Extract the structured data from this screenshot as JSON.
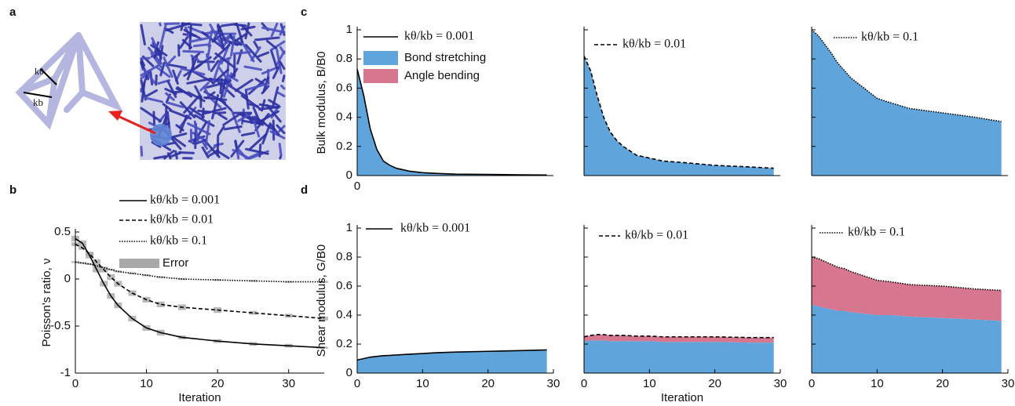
{
  "panels": [
    "a",
    "b",
    "c",
    "d"
  ],
  "diagram_labels": [
    "kθ",
    "kb"
  ],
  "chart_data": [
    {
      "type": "line",
      "xlabel": "Iteration",
      "ylabel": "Poisson's ratio, ν",
      "x": [
        0,
        1,
        2,
        3,
        4,
        5,
        6,
        8,
        10,
        12,
        15,
        20,
        25,
        30,
        35
      ],
      "xlim": [
        0,
        35
      ],
      "xticks": [
        0,
        10,
        20,
        30
      ],
      "ylim": [
        -1,
        0.5
      ],
      "yticks": [
        -1,
        -0.5,
        0,
        0.5
      ],
      "series": [
        {
          "name": "kθ/kb = 0.001",
          "color": "#000000",
          "dash": "solid",
          "values": [
            0.43,
            0.38,
            0.25,
            0.1,
            -0.05,
            -0.18,
            -0.28,
            -0.42,
            -0.52,
            -0.57,
            -0.62,
            -0.66,
            -0.69,
            -0.71,
            -0.73
          ],
          "error": [
            0.03,
            0.03,
            0.03,
            0.03,
            0.03,
            0.03,
            0.03,
            0.03,
            0.03,
            0.03,
            0.02,
            0.02,
            0.02,
            0.02,
            0.01
          ]
        },
        {
          "name": "kθ/kb = 0.01",
          "color": "#000000",
          "dash": "dashed",
          "values": [
            0.37,
            0.33,
            0.27,
            0.18,
            0.1,
            0.02,
            -0.05,
            -0.15,
            -0.22,
            -0.27,
            -0.3,
            -0.33,
            -0.36,
            -0.39,
            -0.42
          ],
          "error": [
            0.02,
            0.02,
            0.02,
            0.03,
            0.03,
            0.03,
            0.03,
            0.03,
            0.03,
            0.03,
            0.03,
            0.03,
            0.02,
            0.02,
            0.02
          ]
        },
        {
          "name": "kθ/kb = 0.1",
          "color": "#000000",
          "dash": "dotted",
          "values": [
            0.18,
            0.17,
            0.16,
            0.14,
            0.12,
            0.1,
            0.08,
            0.06,
            0.04,
            0.02,
            0.0,
            -0.01,
            -0.02,
            -0.03,
            -0.03
          ],
          "error": [
            0.01,
            0.01,
            0.01,
            0.01,
            0.01,
            0.01,
            0.01,
            0.01,
            0.01,
            0.01,
            0.01,
            0.01,
            0.01,
            0.01,
            0.01
          ]
        }
      ],
      "error_name": "Error",
      "error_color": "#a8a8a8",
      "legend": "upper right"
    },
    {
      "type": "stacked-area",
      "ylabel": "Bulk modulus, B/B0",
      "x": [
        0,
        1,
        2,
        3,
        4,
        5,
        6,
        8,
        10,
        12,
        15,
        20,
        25,
        29
      ],
      "xlim": [
        0,
        30
      ],
      "xticks": [
        0
      ],
      "ylim": [
        0,
        1
      ],
      "yticks": [
        0,
        0.2,
        0.4,
        0.6,
        0.8,
        1
      ],
      "show_ytick_labels": true,
      "total_line": {
        "name": "kθ/kb = 0.001",
        "dash": "solid",
        "color": "#000000"
      },
      "series": [
        {
          "name": "Bond stretching",
          "color": "#5fa5dc",
          "values": [
            0.73,
            0.55,
            0.32,
            0.18,
            0.1,
            0.07,
            0.05,
            0.03,
            0.02,
            0.015,
            0.01,
            0.008,
            0.005,
            0.004
          ]
        },
        {
          "name": "Angle bending",
          "color": "#d6778f",
          "values": [
            0,
            0,
            0,
            0,
            0,
            0,
            0,
            0,
            0,
            0,
            0,
            0,
            0,
            0
          ]
        }
      ]
    },
    {
      "type": "stacked-area",
      "x": [
        0,
        1,
        2,
        3,
        4,
        5,
        6,
        8,
        10,
        12,
        15,
        20,
        25,
        29
      ],
      "xlim": [
        0,
        30
      ],
      "ylim": [
        0,
        1
      ],
      "yticks": [
        0,
        0.2,
        0.4,
        0.6,
        0.8,
        1
      ],
      "show_ytick_labels": false,
      "total_line": {
        "name": "kθ/kb = 0.01",
        "dash": "dashed",
        "color": "#000000"
      },
      "series": [
        {
          "color": "#5fa5dc",
          "values": [
            0.82,
            0.72,
            0.55,
            0.4,
            0.3,
            0.24,
            0.2,
            0.14,
            0.12,
            0.1,
            0.09,
            0.07,
            0.06,
            0.05
          ]
        },
        {
          "color": "#d6778f",
          "values": [
            0,
            0,
            0,
            0,
            0,
            0,
            0,
            0,
            0,
            0,
            0,
            0,
            0,
            0
          ]
        }
      ]
    },
    {
      "type": "stacked-area",
      "x": [
        0,
        1,
        2,
        3,
        4,
        5,
        6,
        8,
        10,
        12,
        15,
        20,
        25,
        29
      ],
      "xlim": [
        0,
        30
      ],
      "ylim": [
        0,
        1
      ],
      "yticks": [
        0,
        0.2,
        0.4,
        0.6,
        0.8,
        1
      ],
      "show_ytick_labels": false,
      "total_line": {
        "name": "kθ/kb = 0.1",
        "dash": "dotted",
        "color": "#000000"
      },
      "series": [
        {
          "color": "#5fa5dc",
          "values": [
            1.0,
            0.96,
            0.9,
            0.84,
            0.77,
            0.72,
            0.67,
            0.6,
            0.53,
            0.5,
            0.46,
            0.43,
            0.4,
            0.37
          ]
        },
        {
          "color": "#d6778f",
          "values": [
            0,
            0,
            0,
            0,
            0,
            0,
            0,
            0,
            0,
            0,
            0,
            0,
            0,
            0
          ]
        }
      ]
    },
    {
      "type": "stacked-area",
      "ylabel": "Shear modulus, G/B0",
      "x": [
        0,
        1,
        2,
        3,
        4,
        5,
        6,
        8,
        10,
        12,
        15,
        20,
        25,
        29
      ],
      "xlim": [
        0,
        30
      ],
      "xticks": [
        0,
        10,
        20,
        30
      ],
      "ylim": [
        0,
        1
      ],
      "yticks": [
        0,
        0.2,
        0.4,
        0.6,
        0.8,
        1
      ],
      "show_ytick_labels": true,
      "total_line": {
        "name": "kθ/kb = 0.001",
        "dash": "solid",
        "color": "#000000"
      },
      "series": [
        {
          "color": "#5fa5dc",
          "values": [
            0.09,
            0.1,
            0.11,
            0.115,
            0.12,
            0.122,
            0.125,
            0.13,
            0.135,
            0.14,
            0.145,
            0.15,
            0.155,
            0.16
          ]
        },
        {
          "color": "#d6778f",
          "values": [
            0,
            0,
            0,
            0,
            0,
            0,
            0,
            0,
            0,
            0,
            0,
            0,
            0,
            0
          ]
        }
      ]
    },
    {
      "type": "stacked-area",
      "xlabel": "Iteration",
      "x": [
        0,
        1,
        2,
        3,
        4,
        5,
        6,
        8,
        10,
        12,
        15,
        20,
        25,
        29
      ],
      "xlim": [
        0,
        30
      ],
      "xticks": [
        0,
        10,
        20,
        30
      ],
      "ylim": [
        0,
        1
      ],
      "yticks": [
        0,
        0.2,
        0.4,
        0.6,
        0.8,
        1
      ],
      "show_ytick_labels": false,
      "total_line": {
        "name": "kθ/kb = 0.01",
        "dash": "dashed",
        "color": "#000000"
      },
      "series": [
        {
          "color": "#5fa5dc",
          "values": [
            0.22,
            0.225,
            0.225,
            0.225,
            0.22,
            0.22,
            0.22,
            0.22,
            0.22,
            0.215,
            0.215,
            0.215,
            0.21,
            0.21
          ]
        },
        {
          "color": "#d6778f",
          "values": [
            0.03,
            0.035,
            0.04,
            0.04,
            0.04,
            0.04,
            0.04,
            0.035,
            0.035,
            0.035,
            0.035,
            0.035,
            0.035,
            0.035
          ]
        }
      ]
    },
    {
      "type": "stacked-area",
      "x": [
        0,
        1,
        2,
        3,
        4,
        5,
        6,
        8,
        10,
        12,
        15,
        20,
        25,
        29
      ],
      "xlim": [
        0,
        30
      ],
      "xticks": [
        0,
        10,
        20,
        30
      ],
      "ylim": [
        0,
        1
      ],
      "yticks": [
        0,
        0.2,
        0.4,
        0.6,
        0.8,
        1
      ],
      "show_ytick_labels": false,
      "total_line": {
        "name": "kθ/kb = 0.1",
        "dash": "dotted",
        "color": "#000000"
      },
      "series": [
        {
          "color": "#5fa5dc",
          "values": [
            0.47,
            0.46,
            0.45,
            0.44,
            0.43,
            0.43,
            0.42,
            0.41,
            0.4,
            0.4,
            0.39,
            0.38,
            0.37,
            0.36
          ]
        },
        {
          "color": "#d6778f",
          "values": [
            0.33,
            0.33,
            0.32,
            0.31,
            0.3,
            0.29,
            0.28,
            0.26,
            0.24,
            0.23,
            0.22,
            0.22,
            0.21,
            0.21
          ]
        }
      ]
    }
  ]
}
